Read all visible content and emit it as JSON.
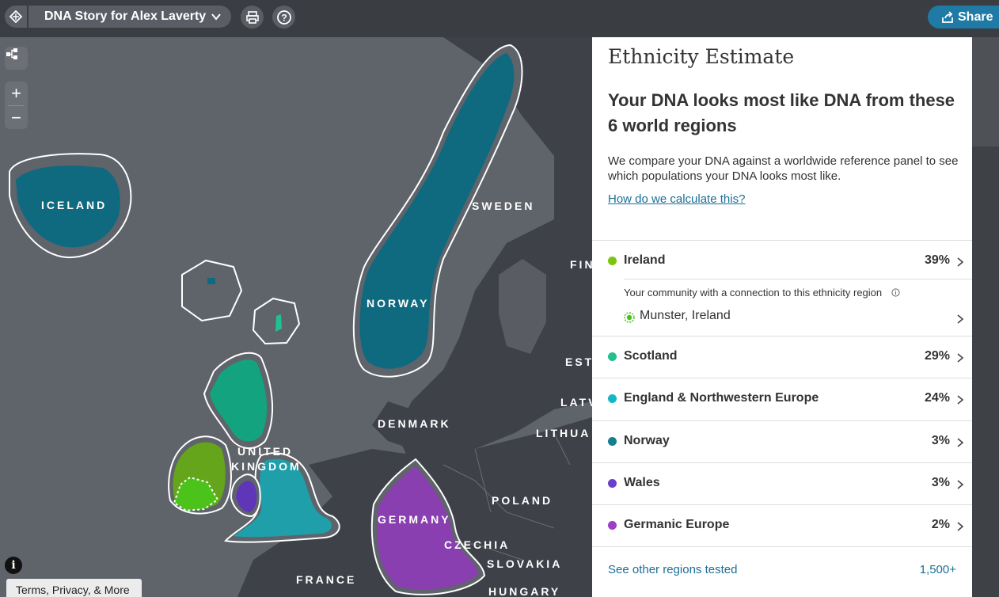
{
  "header": {
    "story_title": "DNA Story for Alex Laverty",
    "share_label": "Share"
  },
  "map": {
    "labels": {
      "iceland": "ICELAND",
      "norway": "NORWAY",
      "sweden": "SWEDEN",
      "finland": "FIN",
      "estonia": "EST",
      "latvia": "LATV",
      "lithuania": "LITHUA",
      "denmark": "DENMARK",
      "united": "UNITED",
      "kingdom": "KINGDOM",
      "poland": "POLAND",
      "germany": "GERMANY",
      "czechia": "CZECHIA",
      "slovakia": "SLOVAKIA",
      "france": "FRANCE",
      "hungary": "HUNGARY"
    },
    "zoom_in": "+",
    "zoom_out": "−",
    "info": "i",
    "terms": "Terms, Privacy, & More"
  },
  "panel": {
    "title": "Ethnicity Estimate",
    "heading": "Your DNA looks most like DNA from these 6 world regions",
    "description": "We compare your DNA against a worldwide reference panel to see which populations your DNA looks most like.",
    "how_link": "How do we calculate this?",
    "regions": [
      {
        "name": "Ireland",
        "percent": "39%",
        "color": "#7ec512"
      },
      {
        "name": "Scotland",
        "percent": "29%",
        "color": "#22c08f"
      },
      {
        "name": "England & Northwestern Europe",
        "percent": "24%",
        "color": "#14b8c4"
      },
      {
        "name": "Norway",
        "percent": "3%",
        "color": "#147f8f"
      },
      {
        "name": "Wales",
        "percent": "3%",
        "color": "#6a3fc9"
      },
      {
        "name": "Germanic Europe",
        "percent": "2%",
        "color": "#9b3fc8"
      }
    ],
    "community": {
      "note": "Your community with a connection to this ethnicity region",
      "place": "Munster, Ireland"
    },
    "other_regions": {
      "label": "See other regions tested",
      "count": "1,500+"
    }
  }
}
